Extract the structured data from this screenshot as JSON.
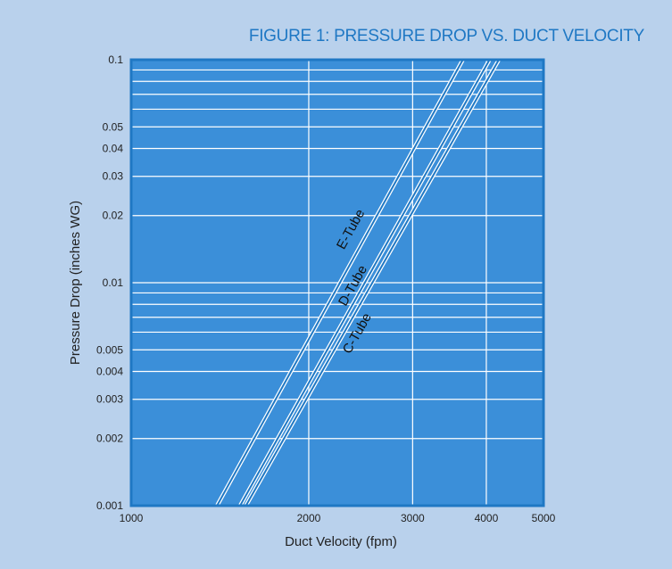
{
  "chart_data": {
    "type": "line",
    "title": "FIGURE 1: PRESSURE DROP VS. DUCT VELOCITY",
    "xlabel": "Duct Velocity (fpm)",
    "ylabel": "Pressure Drop (inches WG)",
    "xscale": "log",
    "yscale": "log",
    "xlim": [
      1000,
      5000
    ],
    "ylim": [
      0.001,
      0.1
    ],
    "x_ticks": [
      1000,
      2000,
      3000,
      4000,
      5000
    ],
    "x_tick_labels": [
      "1000",
      "2000",
      "3000",
      "4000",
      "5000"
    ],
    "y_ticks": [
      0.001,
      0.002,
      0.003,
      0.004,
      0.005,
      0.01,
      0.02,
      0.03,
      0.04,
      0.05,
      0.1
    ],
    "y_tick_labels": [
      "0.001",
      "0.002",
      "0.003",
      "0.004",
      "0.005",
      "0.01",
      "0.02",
      "0.03",
      "0.04",
      "0.05",
      "0.1"
    ],
    "grid": true,
    "legend": "none",
    "series": [
      {
        "name": "E-Tube",
        "x": [
          1398,
          3650
        ],
        "y": [
          0.001,
          0.1
        ],
        "label_at": [
          2390,
          0.017
        ]
      },
      {
        "name": "D-Tube",
        "x": [
          1530,
          4050
        ],
        "y": [
          0.001,
          0.1
        ],
        "label_at": [
          2410,
          0.0095
        ]
      },
      {
        "name": "C-Tube",
        "x": [
          1565,
          4200
        ],
        "y": [
          0.001,
          0.1
        ],
        "label_at": [
          2450,
          0.0058
        ]
      }
    ],
    "colors": {
      "background": "#b9d1ec",
      "plot_area": "#3b8fd9",
      "grid": "#ffffff",
      "axis_frame": "#1f78c4",
      "title": "#1f78c4"
    }
  }
}
